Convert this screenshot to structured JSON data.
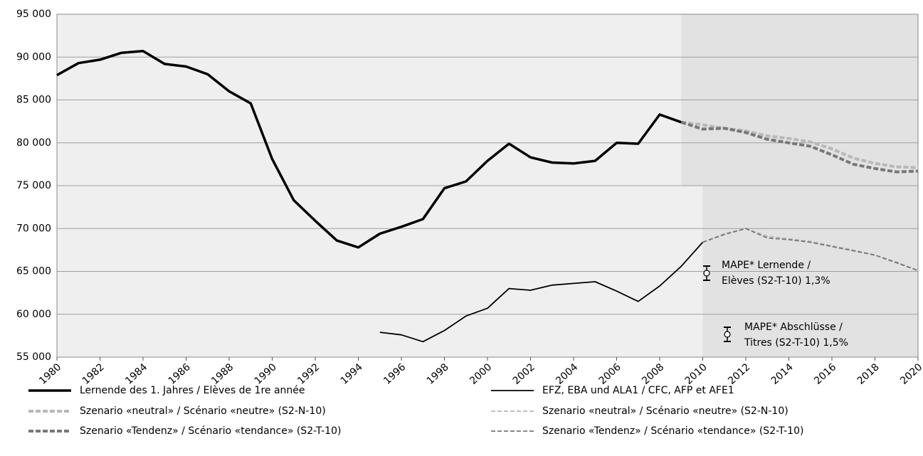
{
  "chart_data": {
    "type": "line",
    "x": [
      1980,
      1981,
      1982,
      1983,
      1984,
      1985,
      1986,
      1987,
      1988,
      1989,
      1990,
      1991,
      1992,
      1993,
      1994,
      1995,
      1996,
      1997,
      1998,
      1999,
      2000,
      2001,
      2002,
      2003,
      2004,
      2005,
      2006,
      2007,
      2008,
      2009,
      2010,
      2011,
      2012,
      2013,
      2014,
      2015,
      2016,
      2017,
      2018,
      2019,
      2020
    ],
    "series": [
      {
        "name": "Lernende des 1. Jahres / Elèves de 1re année",
        "color": "#000000",
        "width": 3.5,
        "dash": "none",
        "values": [
          87900,
          89300,
          89700,
          90500,
          90700,
          89200,
          88900,
          88000,
          86000,
          84600,
          78100,
          73300,
          70900,
          68600,
          67800,
          69400,
          70200,
          71100,
          74700,
          75500,
          77900,
          79900,
          78300,
          77700,
          77600,
          77900,
          80000,
          79900,
          83300,
          82400,
          null,
          null,
          null,
          null,
          null,
          null,
          null,
          null,
          null,
          null,
          null
        ]
      },
      {
        "name": "EFZ, EBA und ALA1 / CFC, AFP et AFE1",
        "color": "#000000",
        "width": 1.8,
        "dash": "none",
        "values": [
          null,
          null,
          null,
          null,
          null,
          null,
          null,
          null,
          null,
          null,
          null,
          null,
          null,
          null,
          null,
          57900,
          57600,
          56800,
          58100,
          59800,
          60700,
          63000,
          62800,
          63400,
          63600,
          63800,
          62700,
          61500,
          63300,
          65600,
          68400,
          null,
          null,
          null,
          null,
          null,
          null,
          null,
          null,
          null,
          null
        ]
      },
      {
        "name": "Szenario «neutral» / Scénario «neutre» (S2-N-10)",
        "color": "#b8b8b8",
        "width": 4,
        "dash": "7 3",
        "values": [
          null,
          null,
          null,
          null,
          null,
          null,
          null,
          null,
          null,
          null,
          null,
          null,
          null,
          null,
          null,
          null,
          null,
          null,
          null,
          null,
          null,
          null,
          null,
          null,
          null,
          null,
          null,
          null,
          null,
          82400,
          82100,
          81700,
          81400,
          80800,
          80500,
          80100,
          79300,
          78200,
          77600,
          77200,
          77100
        ]
      },
      {
        "name": "Szenario «neutral» / Scénario «neutre» (S2-N-10)",
        "color": "#b8b8b8",
        "width": 1.8,
        "dash": "6 3",
        "values": [
          null,
          null,
          null,
          null,
          null,
          null,
          null,
          null,
          null,
          null,
          null,
          null,
          null,
          null,
          null,
          null,
          null,
          null,
          null,
          null,
          null,
          null,
          null,
          null,
          null,
          null,
          null,
          null,
          null,
          null,
          68400,
          69400,
          70000,
          69100,
          68800,
          68500,
          68000,
          67500,
          66900,
          66100,
          65100
        ]
      },
      {
        "name": "Szenario «Tendenz» / Scénario «tendance» (S2-T-10)",
        "color": "#777777",
        "width": 4,
        "dash": "7 3",
        "values": [
          null,
          null,
          null,
          null,
          null,
          null,
          null,
          null,
          null,
          null,
          null,
          null,
          null,
          null,
          null,
          null,
          null,
          null,
          null,
          null,
          null,
          null,
          null,
          null,
          null,
          null,
          null,
          null,
          null,
          82400,
          81600,
          81700,
          81200,
          80400,
          80000,
          79600,
          78600,
          77500,
          77000,
          76600,
          76700
        ]
      },
      {
        "name": "Szenario «Tendenz» / Scénario «tendance» (S2-T-10)",
        "color": "#777777",
        "width": 1.8,
        "dash": "6 3",
        "values": [
          null,
          null,
          null,
          null,
          null,
          null,
          null,
          null,
          null,
          null,
          null,
          null,
          null,
          null,
          null,
          null,
          null,
          null,
          null,
          null,
          null,
          null,
          null,
          null,
          null,
          null,
          null,
          null,
          null,
          null,
          68400,
          69300,
          70000,
          68900,
          68700,
          68400,
          67900,
          67400,
          66900,
          66000,
          65100
        ]
      }
    ],
    "xlim": [
      1980,
      2020
    ],
    "xticks": [
      1980,
      1982,
      1984,
      1986,
      1988,
      1990,
      1992,
      1994,
      1996,
      1998,
      2000,
      2002,
      2004,
      2006,
      2008,
      2010,
      2012,
      2014,
      2016,
      2018,
      2020
    ],
    "ylim": [
      55000,
      95000
    ],
    "yticks": [
      {
        "value": 55000,
        "label": "55 000"
      },
      {
        "value": 60000,
        "label": "60 000"
      },
      {
        "value": 65000,
        "label": "65 000"
      },
      {
        "value": 70000,
        "label": "70 000"
      },
      {
        "value": 75000,
        "label": "75 000"
      },
      {
        "value": 80000,
        "label": "80 000"
      },
      {
        "value": 85000,
        "label": "85 000"
      },
      {
        "value": 90000,
        "label": "90 000"
      },
      {
        "value": 95000,
        "label": "95 000"
      }
    ],
    "grid": true,
    "annotations": [
      [
        "MAPE* Lernende /",
        "Elèves (S2-T-10) 1,3%"
      ],
      [
        "MAPE* Abschlüsse /",
        "Titres (S2-T-10) 1,5%"
      ]
    ]
  }
}
